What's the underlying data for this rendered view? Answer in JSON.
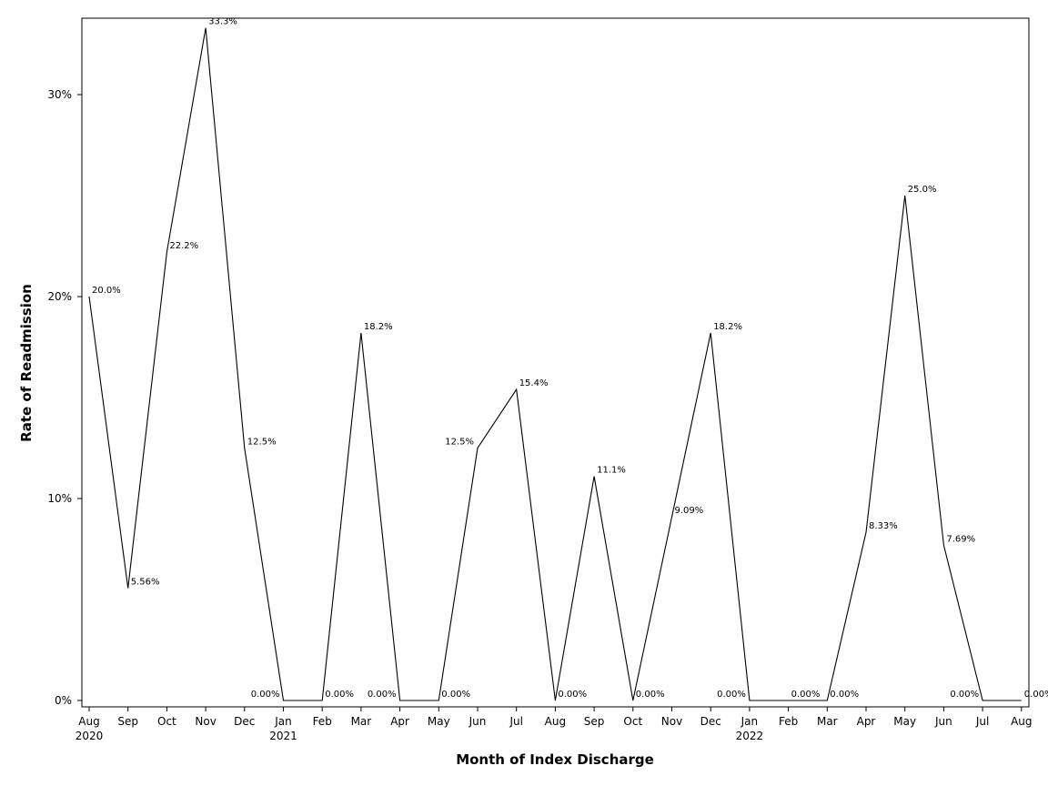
{
  "chart_data": {
    "type": "line",
    "xlabel": "Month of Index Discharge",
    "ylabel": "Rate of Readmission",
    "ylim": [
      0,
      33.3
    ],
    "yticks": [
      {
        "value": 0,
        "label": "0%"
      },
      {
        "value": 10,
        "label": "10%"
      },
      {
        "value": 20,
        "label": "20%"
      },
      {
        "value": 30,
        "label": "30%"
      }
    ],
    "grid": false,
    "legend": "none",
    "line_color": "#000000",
    "categories": [
      "Aug",
      "Sep",
      "Oct",
      "Nov",
      "Dec",
      "Jan",
      "Feb",
      "Mar",
      "Apr",
      "May",
      "Jun",
      "Jul",
      "Aug",
      "Sep",
      "Oct",
      "Nov",
      "Dec",
      "Jan",
      "Feb",
      "Mar",
      "Apr",
      "May",
      "Jun",
      "Jul",
      "Aug"
    ],
    "year_labels": [
      "2020",
      "",
      "",
      "",
      "",
      "2021",
      "",
      "",
      "",
      "",
      "",
      "",
      "",
      "",
      "",
      "",
      "",
      "2022",
      "",
      "",
      "",
      "",
      "",
      "",
      ""
    ],
    "values": [
      20.0,
      5.56,
      22.2,
      33.3,
      12.5,
      0,
      0,
      18.2,
      0,
      0,
      12.5,
      15.4,
      0,
      11.1,
      0,
      9.09,
      18.2,
      0,
      0,
      0,
      8.33,
      25.0,
      7.69,
      0,
      0
    ],
    "data_labels": [
      "20.0%",
      "5.56%",
      "22.2%",
      "33.3%",
      "12.5%",
      "0.00%",
      "0.00%",
      "18.2%",
      "0.00%",
      "0.00%",
      "12.5%",
      "15.4%",
      "0.00%",
      "11.1%",
      "0.00%",
      "9.09%",
      "18.2%",
      "0.00%",
      "0.00%",
      "0.00%",
      "8.33%",
      "25.0%",
      "7.69%",
      "0.00%",
      "0.00%"
    ]
  }
}
